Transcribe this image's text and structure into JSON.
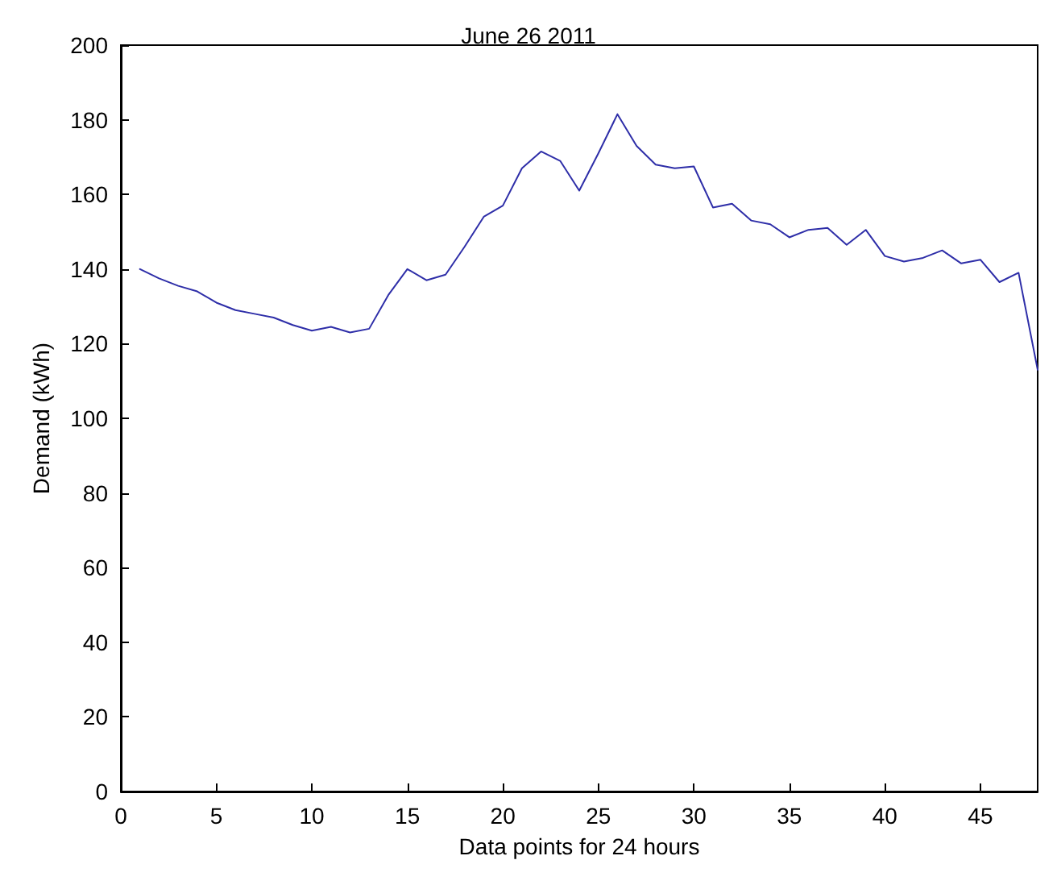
{
  "chart_data": {
    "type": "line",
    "title": "June 26 2011",
    "xlabel": "Data points for 24 hours",
    "ylabel": "Demand (kWh)",
    "x": [
      1,
      2,
      3,
      4,
      5,
      6,
      7,
      8,
      9,
      10,
      11,
      12,
      13,
      14,
      15,
      16,
      17,
      18,
      19,
      20,
      21,
      22,
      23,
      24,
      25,
      26,
      27,
      28,
      29,
      30,
      31,
      32,
      33,
      34,
      35,
      36,
      37,
      38,
      39,
      40,
      41,
      42,
      43,
      44,
      45,
      46,
      47,
      48
    ],
    "series": [
      {
        "color": "#2e2ea8",
        "values": [
          140,
          137.5,
          135.5,
          134,
          131,
          129,
          128,
          127,
          125,
          123.5,
          124.5,
          123,
          124,
          133,
          140,
          137,
          138.5,
          146,
          154,
          157,
          167,
          171.5,
          169,
          161,
          171,
          181.5,
          173,
          168,
          167,
          167.5,
          156.5,
          157.5,
          153,
          152,
          148.5,
          150.5,
          151,
          146.5,
          150.5,
          143.5,
          142,
          143,
          145,
          141.5,
          142.5,
          136.5,
          139,
          113
        ]
      }
    ],
    "xlim": [
      0,
      48
    ],
    "xticks": [
      0,
      5,
      10,
      15,
      20,
      25,
      30,
      35,
      40,
      45
    ],
    "ylim": [
      0,
      200
    ],
    "yticks": [
      0,
      20,
      40,
      60,
      80,
      100,
      120,
      140,
      160,
      180,
      200
    ],
    "grid": false,
    "marker": "none",
    "line_style": "solid"
  }
}
